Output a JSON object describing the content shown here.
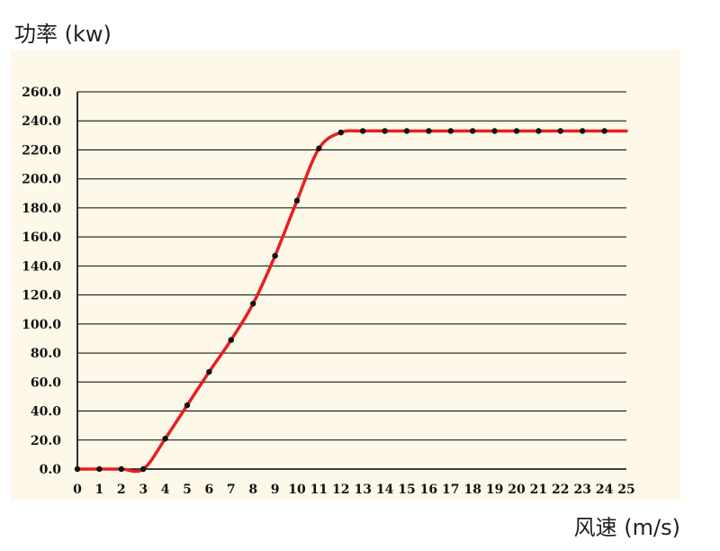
{
  "chart_data": {
    "type": "line",
    "ylabel": "功率 (kw)",
    "xlabel": "风速 (m/s)",
    "x": [
      0,
      1,
      2,
      3,
      4,
      5,
      6,
      7,
      8,
      9,
      10,
      11,
      12,
      13,
      14,
      15,
      16,
      17,
      18,
      19,
      20,
      21,
      22,
      23,
      24
    ],
    "values": [
      0,
      0,
      0,
      0,
      21,
      44,
      67,
      89,
      114,
      147,
      185,
      221,
      232,
      233,
      233,
      233,
      233,
      233,
      233,
      233,
      233,
      233,
      233,
      233,
      233
    ],
    "x_ticks": [
      "0",
      "1",
      "2",
      "3",
      "4",
      "5",
      "6",
      "7",
      "8",
      "9",
      "10",
      "11",
      "12",
      "13",
      "14",
      "15",
      "16",
      "17",
      "18",
      "19",
      "20",
      "21",
      "22",
      "23",
      "24",
      "25"
    ],
    "y_ticks": [
      "0.0",
      "20.0",
      "40.0",
      "60.0",
      "80.0",
      "100.0",
      "120.0",
      "140.0",
      "160.0",
      "180.0",
      "200.0",
      "220.0",
      "240.0",
      "260.0"
    ],
    "xlim": [
      0,
      25
    ],
    "ylim": [
      0,
      260
    ],
    "grid": true,
    "colors": {
      "line": "#e52020",
      "markers": "#111111",
      "plot_background": "#fdf8e8",
      "grid": "#000000"
    }
  }
}
